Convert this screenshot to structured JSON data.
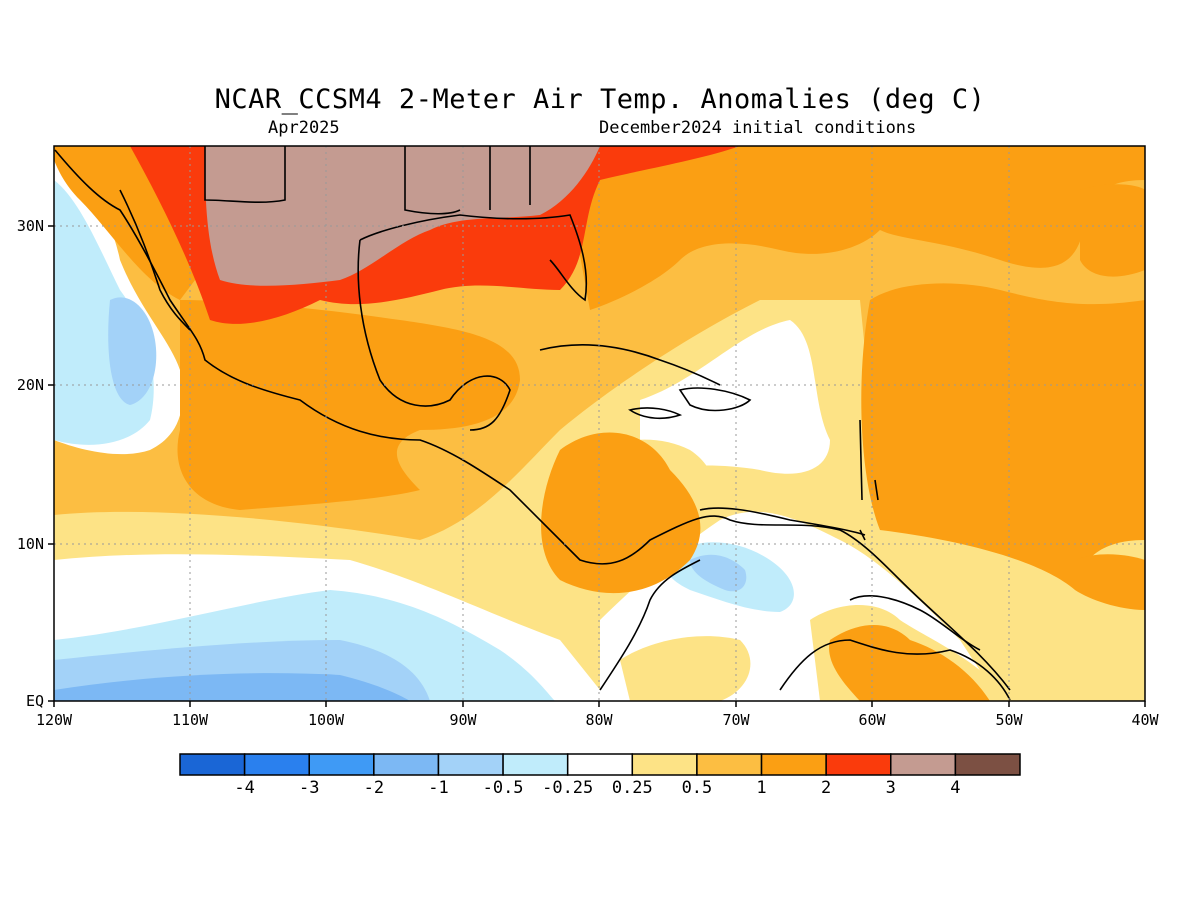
{
  "title": "NCAR_CCSM4 2-Meter Air Temp. Anomalies (deg C)",
  "valid_month": "Apr2025",
  "init_label": "December2024 initial conditions",
  "lon_labels": [
    "120W",
    "110W",
    "100W",
    "90W",
    "80W",
    "70W",
    "60W",
    "50W",
    "40W"
  ],
  "lat_labels": [
    "30N",
    "20N",
    "10N",
    "EQ"
  ],
  "colorbar": {
    "colors": [
      "#1a66d6",
      "#2a80ee",
      "#3f9af5",
      "#7cb8f4",
      "#a3d2f8",
      "#c0ecfb",
      "#ffffff",
      "#fde386",
      "#fcbe42",
      "#fb9f13",
      "#fa3b0c",
      "#c49b91",
      "#7c5043"
    ],
    "labels": [
      "-4",
      "-3",
      "-2",
      "-1",
      "-0.5",
      "-0.25",
      "0.25",
      "0.5",
      "1",
      "2",
      "3",
      "4"
    ]
  }
}
